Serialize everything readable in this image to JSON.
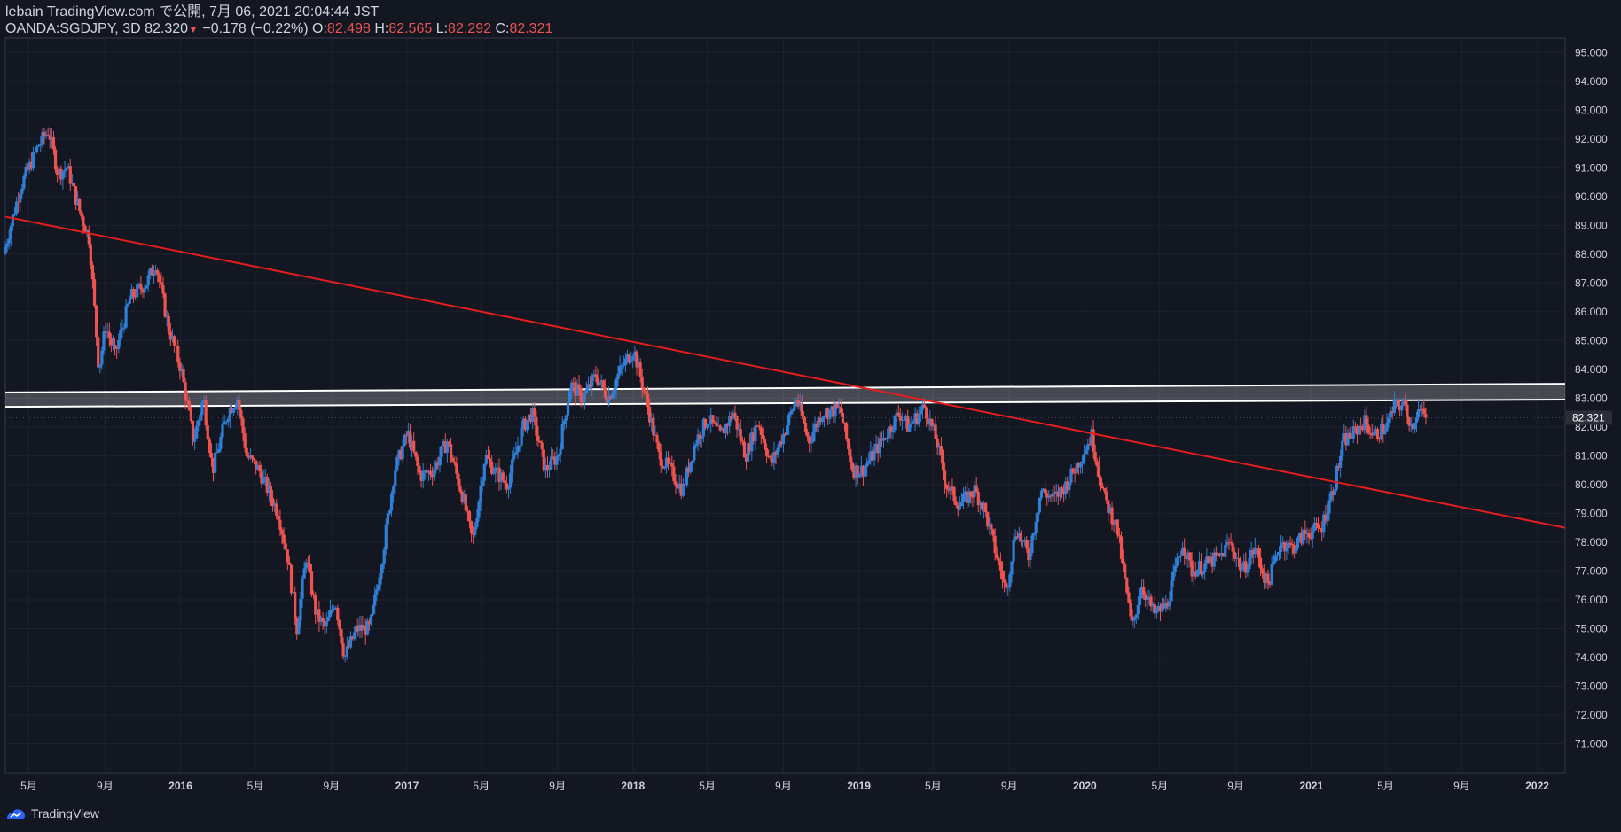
{
  "header": {
    "published": "lebain TradingView.com で公開, 7月 06, 2021 20:04:44 JST",
    "symbol": "OANDA:SGDJPY, 3D 82.320",
    "change": "−0.178 (−0.22%)",
    "o_label": "O:",
    "o_value": "82.498",
    "h_label": "H:",
    "h_value": "82.565",
    "l_label": "L:",
    "l_value": "82.292",
    "c_label": "C:",
    "c_value": "82.321"
  },
  "footer": {
    "brand": "TradingView"
  },
  "colors": {
    "background": "#131722",
    "up": "#2f7fd6",
    "down": "#ef5350",
    "trendline": "#e51d1d",
    "zone": "#ffffff",
    "grid": "#1e2230",
    "axis_text": "#d1d4dc"
  },
  "chart_data": {
    "type": "candlestick",
    "symbol": "OANDA:SGDJPY",
    "interval": "3D",
    "last_price": "82.321",
    "ylim": [
      70.0,
      95.5
    ],
    "y_ticks": [
      "95.000",
      "94.000",
      "93.000",
      "92.000",
      "91.000",
      "90.000",
      "89.000",
      "88.000",
      "87.000",
      "86.000",
      "85.000",
      "84.000",
      "83.000",
      "82.000",
      "81.000",
      "80.000",
      "79.000",
      "78.000",
      "77.000",
      "76.000",
      "75.000",
      "74.000",
      "73.000",
      "72.000",
      "71.000"
    ],
    "x_ticks": [
      "5月",
      "9月",
      "2016",
      "5月",
      "9月",
      "2017",
      "5月",
      "9月",
      "2018",
      "5月",
      "9月",
      "2019",
      "5月",
      "9月",
      "2020",
      "5月",
      "9月",
      "2021",
      "5月",
      "9月",
      "2022"
    ],
    "x_tick_dates": [
      "2015-05-01",
      "2015-09-01",
      "2016-01-01",
      "2016-05-01",
      "2016-09-01",
      "2017-01-01",
      "2017-05-01",
      "2017-09-01",
      "2018-01-01",
      "2018-05-01",
      "2018-09-01",
      "2019-01-01",
      "2019-05-01",
      "2019-09-01",
      "2020-01-01",
      "2020-05-01",
      "2020-09-01",
      "2021-01-01",
      "2021-05-01",
      "2021-09-01",
      "2022-01-01"
    ],
    "close_path": [
      [
        "2015-03-24",
        88.0
      ],
      [
        "2015-04-20",
        90.3
      ],
      [
        "2015-05-20",
        91.8
      ],
      [
        "2015-06-05",
        92.3
      ],
      [
        "2015-06-20",
        90.8
      ],
      [
        "2015-07-05",
        91.0
      ],
      [
        "2015-07-25",
        89.5
      ],
      [
        "2015-08-10",
        88.5
      ],
      [
        "2015-08-25",
        84.0
      ],
      [
        "2015-09-05",
        85.5
      ],
      [
        "2015-09-20",
        84.5
      ],
      [
        "2015-10-15",
        86.5
      ],
      [
        "2015-11-10",
        87.0
      ],
      [
        "2015-11-25",
        87.7
      ],
      [
        "2015-12-15",
        85.5
      ],
      [
        "2016-01-05",
        84.0
      ],
      [
        "2016-01-25",
        81.5
      ],
      [
        "2016-02-10",
        83.0
      ],
      [
        "2016-02-25",
        80.5
      ],
      [
        "2016-03-20",
        82.5
      ],
      [
        "2016-04-05",
        83.0
      ],
      [
        "2016-04-20",
        81.0
      ],
      [
        "2016-05-10",
        80.5
      ],
      [
        "2016-06-10",
        79.0
      ],
      [
        "2016-06-25",
        77.5
      ],
      [
        "2016-07-10",
        75.0
      ],
      [
        "2016-07-25",
        77.5
      ],
      [
        "2016-08-10",
        75.5
      ],
      [
        "2016-08-25",
        75.0
      ],
      [
        "2016-09-10",
        76.0
      ],
      [
        "2016-09-25",
        74.0
      ],
      [
        "2016-10-15",
        75.0
      ],
      [
        "2016-11-05",
        75.0
      ],
      [
        "2016-11-25",
        77.5
      ],
      [
        "2016-12-15",
        80.5
      ],
      [
        "2017-01-05",
        81.8
      ],
      [
        "2017-01-25",
        80.3
      ],
      [
        "2017-02-15",
        80.5
      ],
      [
        "2017-03-10",
        81.5
      ],
      [
        "2017-04-05",
        79.5
      ],
      [
        "2017-04-20",
        78.0
      ],
      [
        "2017-05-10",
        81.0
      ],
      [
        "2017-05-25",
        80.5
      ],
      [
        "2017-06-15",
        80.0
      ],
      [
        "2017-07-10",
        82.0
      ],
      [
        "2017-07-25",
        82.5
      ],
      [
        "2017-08-15",
        80.5
      ],
      [
        "2017-09-05",
        81.0
      ],
      [
        "2017-09-25",
        83.5
      ],
      [
        "2017-10-15",
        83.0
      ],
      [
        "2017-11-05",
        83.8
      ],
      [
        "2017-11-25",
        83.0
      ],
      [
        "2017-12-15",
        84.0
      ],
      [
        "2018-01-05",
        84.7
      ],
      [
        "2018-01-25",
        83.0
      ],
      [
        "2018-02-15",
        81.0
      ],
      [
        "2018-03-05",
        80.5
      ],
      [
        "2018-03-25",
        79.8
      ],
      [
        "2018-04-15",
        81.5
      ],
      [
        "2018-05-05",
        82.3
      ],
      [
        "2018-05-25",
        81.7
      ],
      [
        "2018-06-15",
        82.5
      ],
      [
        "2018-07-05",
        81.0
      ],
      [
        "2018-07-25",
        82.2
      ],
      [
        "2018-08-15",
        80.7
      ],
      [
        "2018-09-05",
        81.8
      ],
      [
        "2018-09-25",
        83.0
      ],
      [
        "2018-10-15",
        81.5
      ],
      [
        "2018-11-05",
        82.5
      ],
      [
        "2018-12-05",
        82.6
      ],
      [
        "2018-12-25",
        80.5
      ],
      [
        "2019-01-10",
        80.5
      ],
      [
        "2019-02-10",
        81.5
      ],
      [
        "2019-03-10",
        82.5
      ],
      [
        "2019-03-25",
        82.0
      ],
      [
        "2019-04-20",
        82.7
      ],
      [
        "2019-05-10",
        81.5
      ],
      [
        "2019-05-25",
        80.0
      ],
      [
        "2019-06-15",
        79.3
      ],
      [
        "2019-07-10",
        79.8
      ],
      [
        "2019-07-25",
        79.2
      ],
      [
        "2019-08-15",
        77.5
      ],
      [
        "2019-08-30",
        76.3
      ],
      [
        "2019-09-15",
        78.5
      ],
      [
        "2019-10-05",
        77.5
      ],
      [
        "2019-10-25",
        79.8
      ],
      [
        "2019-11-15",
        79.5
      ],
      [
        "2019-12-05",
        80.0
      ],
      [
        "2019-12-25",
        80.8
      ],
      [
        "2020-01-15",
        81.7
      ],
      [
        "2020-02-05",
        79.5
      ],
      [
        "2020-02-25",
        78.5
      ],
      [
        "2020-03-10",
        76.5
      ],
      [
        "2020-03-20",
        75.0
      ],
      [
        "2020-04-05",
        76.5
      ],
      [
        "2020-04-25",
        75.5
      ],
      [
        "2020-05-15",
        75.8
      ],
      [
        "2020-06-10",
        78.0
      ],
      [
        "2020-06-25",
        77.0
      ],
      [
        "2020-07-15",
        77.2
      ],
      [
        "2020-08-10",
        77.5
      ],
      [
        "2020-08-25",
        78.0
      ],
      [
        "2020-09-15",
        77.0
      ],
      [
        "2020-10-05",
        77.8
      ],
      [
        "2020-10-25",
        76.5
      ],
      [
        "2020-11-15",
        78.0
      ],
      [
        "2020-12-05",
        77.8
      ],
      [
        "2020-12-25",
        78.3
      ],
      [
        "2021-01-20",
        78.5
      ],
      [
        "2021-02-10",
        80.0
      ],
      [
        "2021-02-25",
        81.5
      ],
      [
        "2021-03-15",
        81.8
      ],
      [
        "2021-03-30",
        82.2
      ],
      [
        "2021-04-15",
        81.7
      ],
      [
        "2021-05-05",
        82.0
      ],
      [
        "2021-05-20",
        82.8
      ],
      [
        "2021-06-05",
        82.7
      ],
      [
        "2021-06-15",
        82.0
      ],
      [
        "2021-06-25",
        82.6
      ],
      [
        "2021-07-06",
        82.32
      ]
    ],
    "trendline": {
      "start": [
        "2015-03-24",
        89.3
      ],
      "end": [
        "2022-02-15",
        78.5
      ]
    },
    "resistance_zone": {
      "upper": {
        "start": [
          "2015-03-24",
          83.2
        ],
        "end": [
          "2022-02-15",
          83.5
        ]
      },
      "lower": {
        "start": [
          "2015-03-24",
          82.7
        ],
        "end": [
          "2022-02-15",
          82.95
        ]
      }
    }
  }
}
